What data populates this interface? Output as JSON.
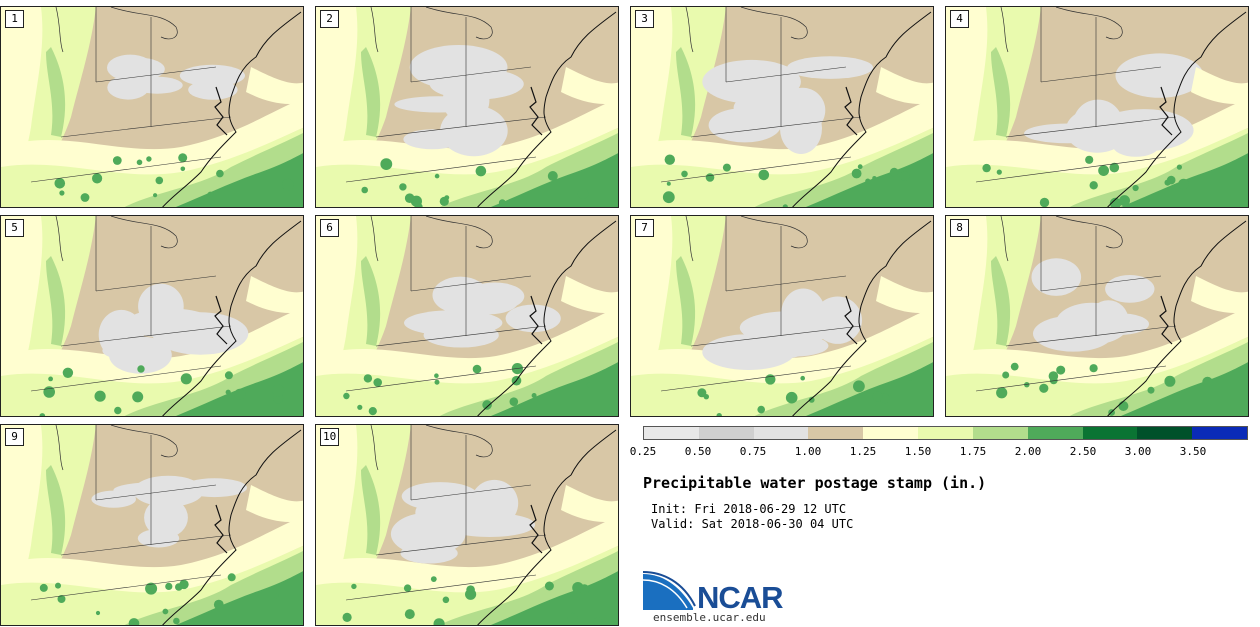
{
  "panels": [
    "1",
    "2",
    "3",
    "4",
    "5",
    "6",
    "7",
    "8",
    "9",
    "10"
  ],
  "colorbar": {
    "colors": [
      "#e8e8e8",
      "#cfcfcf",
      "#e2e2e2",
      "#d8c7a6",
      "#fffed0",
      "#e9faae",
      "#b2dd8c",
      "#4faa5a",
      "#0a7433",
      "#00512a",
      "#0a2bb8"
    ],
    "ticks": [
      "0.25",
      "0.50",
      "0.75",
      "1.00",
      "1.25",
      "1.50",
      "1.75",
      "2.00",
      "2.50",
      "3.00",
      "3.50"
    ]
  },
  "title": "Precipitable water postage stamp (in.)",
  "init": "Init: Fri 2018-06-29 12 UTC",
  "valid": "Valid: Sat 2018-06-30 04 UTC",
  "logo": {
    "name": "NCAR",
    "url": "ensemble.ucar.edu"
  }
}
